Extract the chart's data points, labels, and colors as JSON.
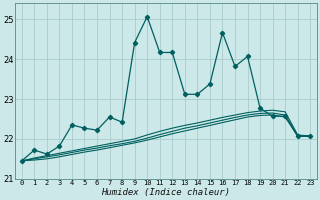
{
  "title": "",
  "xlabel": "Humidex (Indice chaleur)",
  "background_color": "#cce8e8",
  "grid_color": "#aacccc",
  "line_color": "#005f5f",
  "xlim": [
    -0.5,
    23.5
  ],
  "ylim": [
    21.0,
    25.4
  ],
  "yticks": [
    21,
    22,
    23,
    24,
    25
  ],
  "xticks": [
    0,
    1,
    2,
    3,
    4,
    5,
    6,
    7,
    8,
    9,
    10,
    11,
    12,
    13,
    14,
    15,
    16,
    17,
    18,
    19,
    20,
    21,
    22,
    23
  ],
  "main_line_y": [
    21.45,
    21.72,
    21.62,
    21.82,
    22.35,
    22.27,
    22.22,
    22.55,
    22.42,
    24.42,
    25.07,
    24.17,
    24.17,
    23.12,
    23.12,
    23.38,
    24.67,
    23.82,
    24.07,
    22.77,
    22.57,
    22.57,
    22.07,
    22.07
  ],
  "reg_line1_y": [
    21.45,
    21.52,
    21.58,
    21.64,
    21.7,
    21.76,
    21.82,
    21.88,
    21.94,
    22.0,
    22.1,
    22.19,
    22.27,
    22.34,
    22.4,
    22.47,
    22.54,
    22.6,
    22.66,
    22.7,
    22.72,
    22.68,
    22.1,
    22.07
  ],
  "reg_line2_y": [
    21.45,
    21.5,
    21.55,
    21.6,
    21.66,
    21.72,
    21.77,
    21.83,
    21.88,
    21.94,
    22.02,
    22.11,
    22.19,
    22.27,
    22.33,
    22.4,
    22.47,
    22.54,
    22.6,
    22.64,
    22.65,
    22.6,
    22.07,
    22.07
  ],
  "reg_line3_y": [
    21.45,
    21.47,
    21.5,
    21.55,
    21.61,
    21.67,
    21.72,
    21.78,
    21.84,
    21.9,
    21.97,
    22.05,
    22.13,
    22.2,
    22.27,
    22.34,
    22.41,
    22.48,
    22.55,
    22.59,
    22.6,
    22.55,
    22.07,
    22.07
  ]
}
